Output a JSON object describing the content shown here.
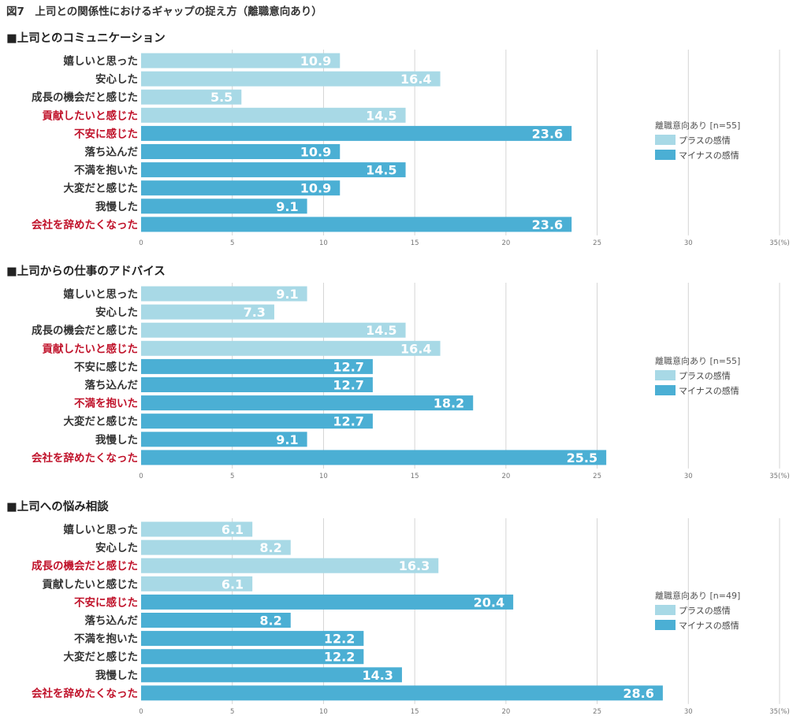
{
  "title": "図7　上司との関係性におけるギャップの捉え方（離職意向あり）",
  "colors": {
    "plus": "#a8d9e6",
    "minus": "#4bafd4",
    "highlight": "#c0122a"
  },
  "chart_data": [
    {
      "type": "bar",
      "orientation": "horizontal",
      "title": "■上司とのコミュニケーション",
      "categories": [
        "嬉しいと思った",
        "安心した",
        "成長の機会だと感じた",
        "貢献したいと感じた",
        "不安に感じた",
        "落ち込んだ",
        "不満を抱いた",
        "大変だと感じた",
        "我慢した",
        "会社を辞めたくなった"
      ],
      "values": [
        10.9,
        16.4,
        5.5,
        14.5,
        23.6,
        10.9,
        14.5,
        10.9,
        9.1,
        23.6
      ],
      "value_labels": [
        "10.9",
        "16.4",
        "5.5",
        "14.5",
        "23.6",
        "10.9",
        "14.5",
        "10.9",
        "9.1",
        "23.6"
      ],
      "series_index": [
        0,
        0,
        0,
        0,
        1,
        1,
        1,
        1,
        1,
        1
      ],
      "highlighted": [
        false,
        false,
        false,
        true,
        true,
        false,
        false,
        false,
        false,
        true
      ],
      "xlim": [
        0,
        35
      ],
      "ticks": [
        "0",
        "5",
        "10",
        "15",
        "20",
        "25",
        "30",
        "35(%)"
      ],
      "legend": {
        "title": "離職意向あり [n=55]",
        "entries": [
          "プラスの感情",
          "マイナスの感情"
        ]
      }
    },
    {
      "type": "bar",
      "orientation": "horizontal",
      "title": "■上司からの仕事のアドバイス",
      "categories": [
        "嬉しいと思った",
        "安心した",
        "成長の機会だと感じた",
        "貢献したいと感じた",
        "不安に感じた",
        "落ち込んだ",
        "不満を抱いた",
        "大変だと感じた",
        "我慢した",
        "会社を辞めたくなった"
      ],
      "values": [
        9.1,
        7.3,
        14.5,
        16.4,
        12.7,
        12.7,
        18.2,
        12.7,
        9.1,
        25.5
      ],
      "value_labels": [
        "9.1",
        "7.3",
        "14.5",
        "16.4",
        "12.7",
        "12.7",
        "18.2",
        "12.7",
        "9.1",
        "25.5"
      ],
      "series_index": [
        0,
        0,
        0,
        0,
        1,
        1,
        1,
        1,
        1,
        1
      ],
      "highlighted": [
        false,
        false,
        false,
        true,
        false,
        false,
        true,
        false,
        false,
        true
      ],
      "xlim": [
        0,
        35
      ],
      "ticks": [
        "0",
        "5",
        "10",
        "15",
        "20",
        "25",
        "30",
        "35(%)"
      ],
      "legend": {
        "title": "離職意向あり [n=55]",
        "entries": [
          "プラスの感情",
          "マイナスの感情"
        ]
      }
    },
    {
      "type": "bar",
      "orientation": "horizontal",
      "title": "■上司への悩み相談",
      "categories": [
        "嬉しいと思った",
        "安心した",
        "成長の機会だと感じた",
        "貢献したいと感じた",
        "不安に感じた",
        "落ち込んだ",
        "不満を抱いた",
        "大変だと感じた",
        "我慢した",
        "会社を辞めたくなった"
      ],
      "values": [
        6.1,
        8.2,
        16.3,
        6.1,
        20.4,
        8.2,
        12.2,
        12.2,
        14.3,
        28.6
      ],
      "value_labels": [
        "6.1",
        "8.2",
        "16.3",
        "6.1",
        "20.4",
        "8.2",
        "12.2",
        "12.2",
        "14.3",
        "28.6"
      ],
      "series_index": [
        0,
        0,
        0,
        0,
        1,
        1,
        1,
        1,
        1,
        1
      ],
      "highlighted": [
        false,
        false,
        true,
        false,
        true,
        false,
        false,
        false,
        false,
        true
      ],
      "xlim": [
        0,
        35
      ],
      "ticks": [
        "0",
        "5",
        "10",
        "15",
        "20",
        "25",
        "30",
        "35(%)"
      ],
      "legend": {
        "title": "離職意向あり [n=49]",
        "entries": [
          "プラスの感情",
          "マイナスの感情"
        ]
      }
    }
  ]
}
